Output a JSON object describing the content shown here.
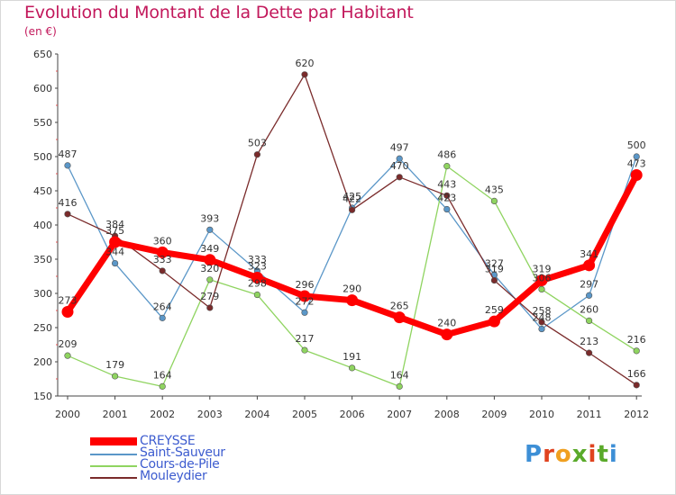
{
  "title": "Evolution du Montant de la Dette par Habitant",
  "subtitle": "(en €)",
  "logo": {
    "text": "Proxiti",
    "colors": [
      "#3d8fd6",
      "#e0431f",
      "#f0a020",
      "#5aaa2a",
      "#e0431f",
      "#5aaa2a",
      "#3d8fd6"
    ]
  },
  "chart_data": {
    "type": "line",
    "x": [
      "2000",
      "2001",
      "2002",
      "2003",
      "2004",
      "2005",
      "2006",
      "2007",
      "2008",
      "2009",
      "2010",
      "2011",
      "2012"
    ],
    "ylim": [
      150,
      650
    ],
    "yticks": [
      150,
      200,
      250,
      300,
      350,
      400,
      450,
      500,
      550,
      600,
      650
    ],
    "grid": false,
    "legend_position": "bottom-left",
    "series": [
      {
        "name": "CREYSSE",
        "color": "#ff0000",
        "values": [
          273,
          375,
          360,
          349,
          323,
          296,
          290,
          265,
          240,
          259,
          319,
          341,
          473
        ]
      },
      {
        "name": "Saint-Sauveur",
        "color": "#5b97c8",
        "values": [
          487,
          344,
          264,
          393,
          333,
          272,
          425,
          497,
          423,
          327,
          248,
          297,
          500
        ]
      },
      {
        "name": "Cours-de-Pile",
        "color": "#8fd460",
        "values": [
          209,
          179,
          164,
          320,
          298,
          217,
          191,
          164,
          486,
          435,
          306,
          260,
          216
        ]
      },
      {
        "name": "Mouleydier",
        "color": "#7a2b2b",
        "values": [
          416,
          384,
          333,
          279,
          503,
          620,
          422,
          470,
          443,
          319,
          258,
          213,
          166
        ]
      }
    ]
  }
}
